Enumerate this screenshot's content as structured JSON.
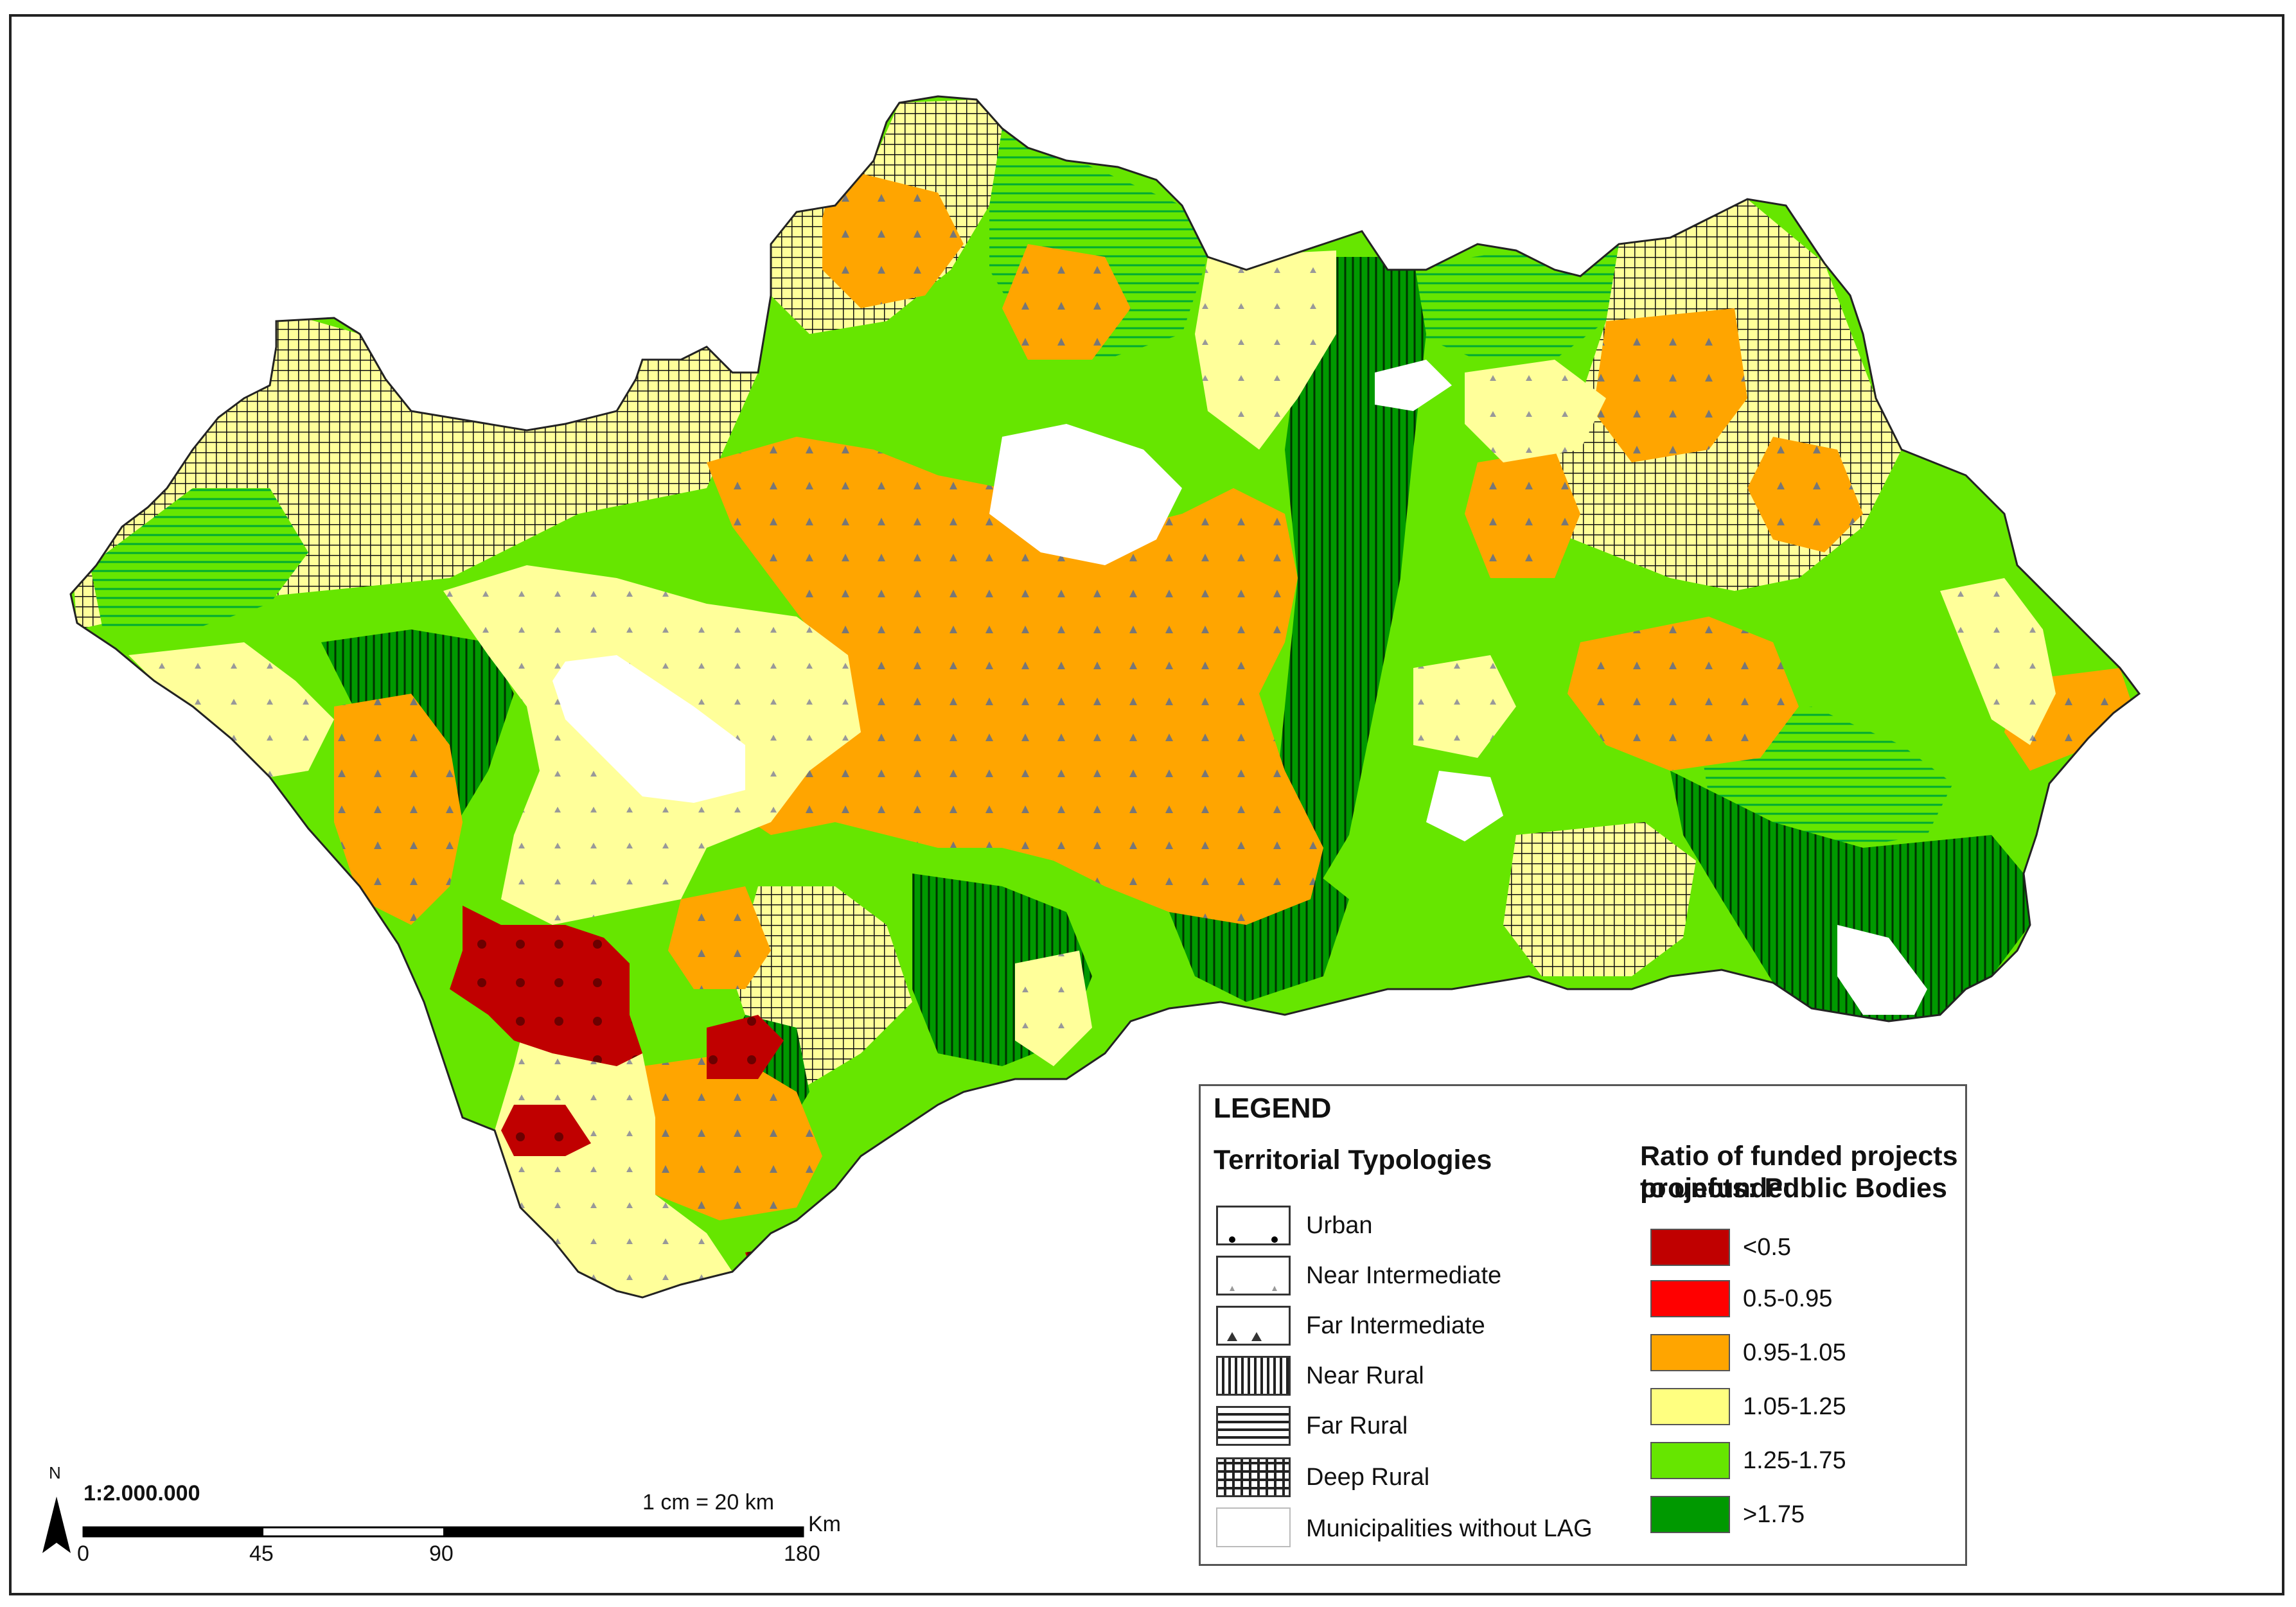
{
  "legend": {
    "title": "LEGEND",
    "typologies_heading": "Territorial Typologies",
    "typologies": [
      {
        "label": "Urban",
        "pattern": "urban-dots"
      },
      {
        "label": "Near Intermediate",
        "pattern": "small-triangles"
      },
      {
        "label": "Far Intermediate",
        "pattern": "large-triangles"
      },
      {
        "label": "Near Rural",
        "pattern": "vertical-lines"
      },
      {
        "label": "Far Rural",
        "pattern": "horizontal-lines"
      },
      {
        "label": "Deep Rural",
        "pattern": "grid"
      },
      {
        "label": "Municipalities without LAG",
        "pattern": "none"
      }
    ],
    "ratio_heading_line1": "Ratio of funded projects to  unfunded",
    "ratio_heading_line2": "projects: Public Bodies",
    "ratio_classes": [
      {
        "label": "<0.5",
        "color": "#c00000"
      },
      {
        "label": "0.5-0.95",
        "color": "#ff0000"
      },
      {
        "label": "0.95-1.05",
        "color": "#ffa500"
      },
      {
        "label": "1.05-1.25",
        "color": "#ffff80"
      },
      {
        "label": "1.25-1.75",
        "color": "#66e600"
      },
      {
        "label": ">1.75",
        "color": "#009900"
      }
    ]
  },
  "scale": {
    "ratio": "1:2.000.000",
    "equivalence": "1 cm = 20 km",
    "ticks": [
      "0",
      "45",
      "90",
      "180"
    ],
    "unit": "Km",
    "north": "N"
  }
}
